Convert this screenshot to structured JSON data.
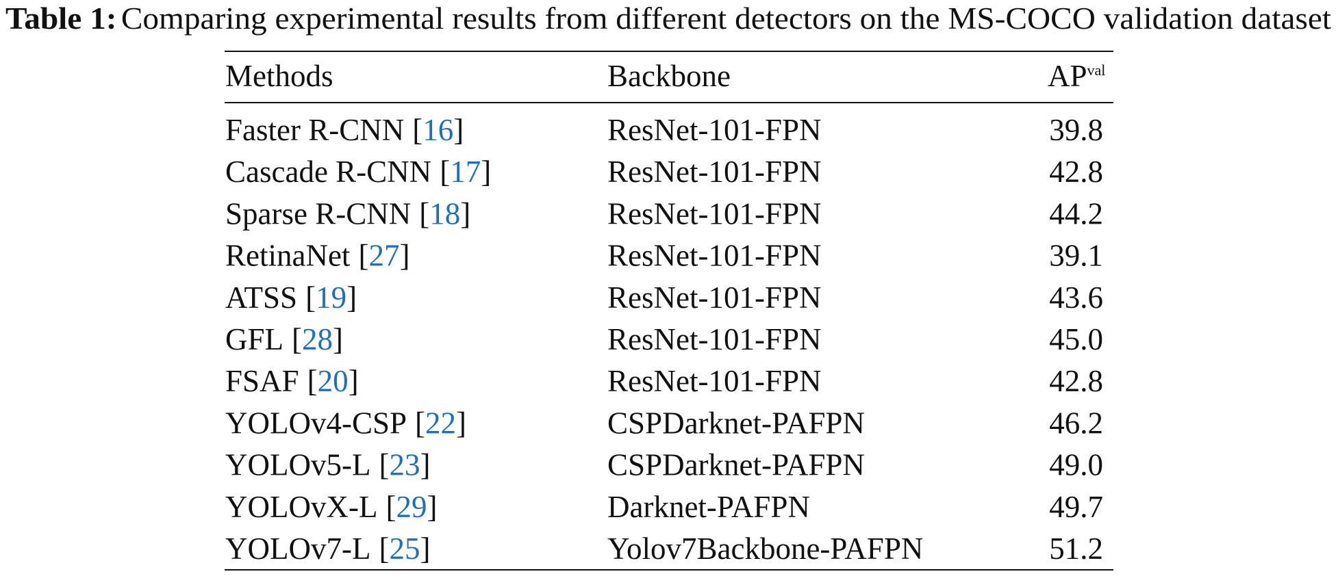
{
  "caption": {
    "label": "Table 1:",
    "text": "Comparing experimental results from different detectors on the MS-COCO validation dataset"
  },
  "table": {
    "cite_brackets": [
      "[",
      "]"
    ],
    "header": {
      "method": "Methods",
      "backbone": "Backbone",
      "ap": "AP",
      "ap_sup": "val"
    },
    "rows": [
      {
        "method": "Faster R-CNN",
        "ref": "16",
        "backbone": "ResNet-101-FPN",
        "ap": "39.8"
      },
      {
        "method": "Cascade R-CNN",
        "ref": "17",
        "backbone": "ResNet-101-FPN",
        "ap": "42.8"
      },
      {
        "method": "Sparse R-CNN",
        "ref": "18",
        "backbone": "ResNet-101-FPN",
        "ap": "44.2"
      },
      {
        "method": "RetinaNet",
        "ref": "27",
        "backbone": "ResNet-101-FPN",
        "ap": "39.1"
      },
      {
        "method": "ATSS",
        "ref": "19",
        "backbone": "ResNet-101-FPN",
        "ap": "43.6"
      },
      {
        "method": "GFL",
        "ref": "28",
        "backbone": "ResNet-101-FPN",
        "ap": "45.0"
      },
      {
        "method": "FSAF",
        "ref": "20",
        "backbone": "ResNet-101-FPN",
        "ap": "42.8"
      },
      {
        "method": "YOLOv4-CSP",
        "ref": "22",
        "backbone": "CSPDarknet-PAFPN",
        "ap": "46.2"
      },
      {
        "method": "YOLOv5-L",
        "ref": "23",
        "backbone": "CSPDarknet-PAFPN",
        "ap": "49.0"
      },
      {
        "method": "YOLOvX-L",
        "ref": "29",
        "backbone": "Darknet-PAFPN",
        "ap": "49.7"
      },
      {
        "method": "YOLOv7-L",
        "ref": "25",
        "backbone": "Yolov7Backbone-PAFPN",
        "ap": "51.2"
      }
    ]
  }
}
